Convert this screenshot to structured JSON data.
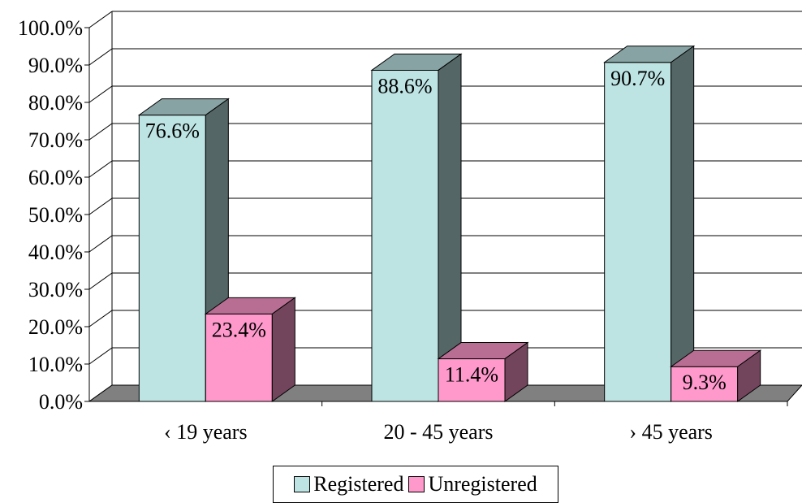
{
  "chart_data": {
    "type": "bar",
    "categories": [
      "‹ 19 years",
      "20 - 45 years",
      "› 45 years"
    ],
    "series": [
      {
        "name": "Registered",
        "values": [
          76.6,
          88.6,
          90.7
        ],
        "labels": [
          "76.6%",
          "88.6%",
          "90.7%"
        ],
        "color": "#BDE3E3"
      },
      {
        "name": "Unregistered",
        "values": [
          23.4,
          11.4,
          9.3
        ],
        "labels": [
          "23.4%",
          "11.4%",
          "9.3%"
        ],
        "color": "#FF99CC"
      }
    ],
    "ylim": [
      0,
      100
    ],
    "yticks": [
      "0.0%",
      "10.0%",
      "20.0%",
      "30.0%",
      "40.0%",
      "50.0%",
      "60.0%",
      "70.0%",
      "80.0%",
      "90.0%",
      "100.0%"
    ],
    "grid": true,
    "style": "3d-clustered",
    "legend_position": "bottom"
  }
}
